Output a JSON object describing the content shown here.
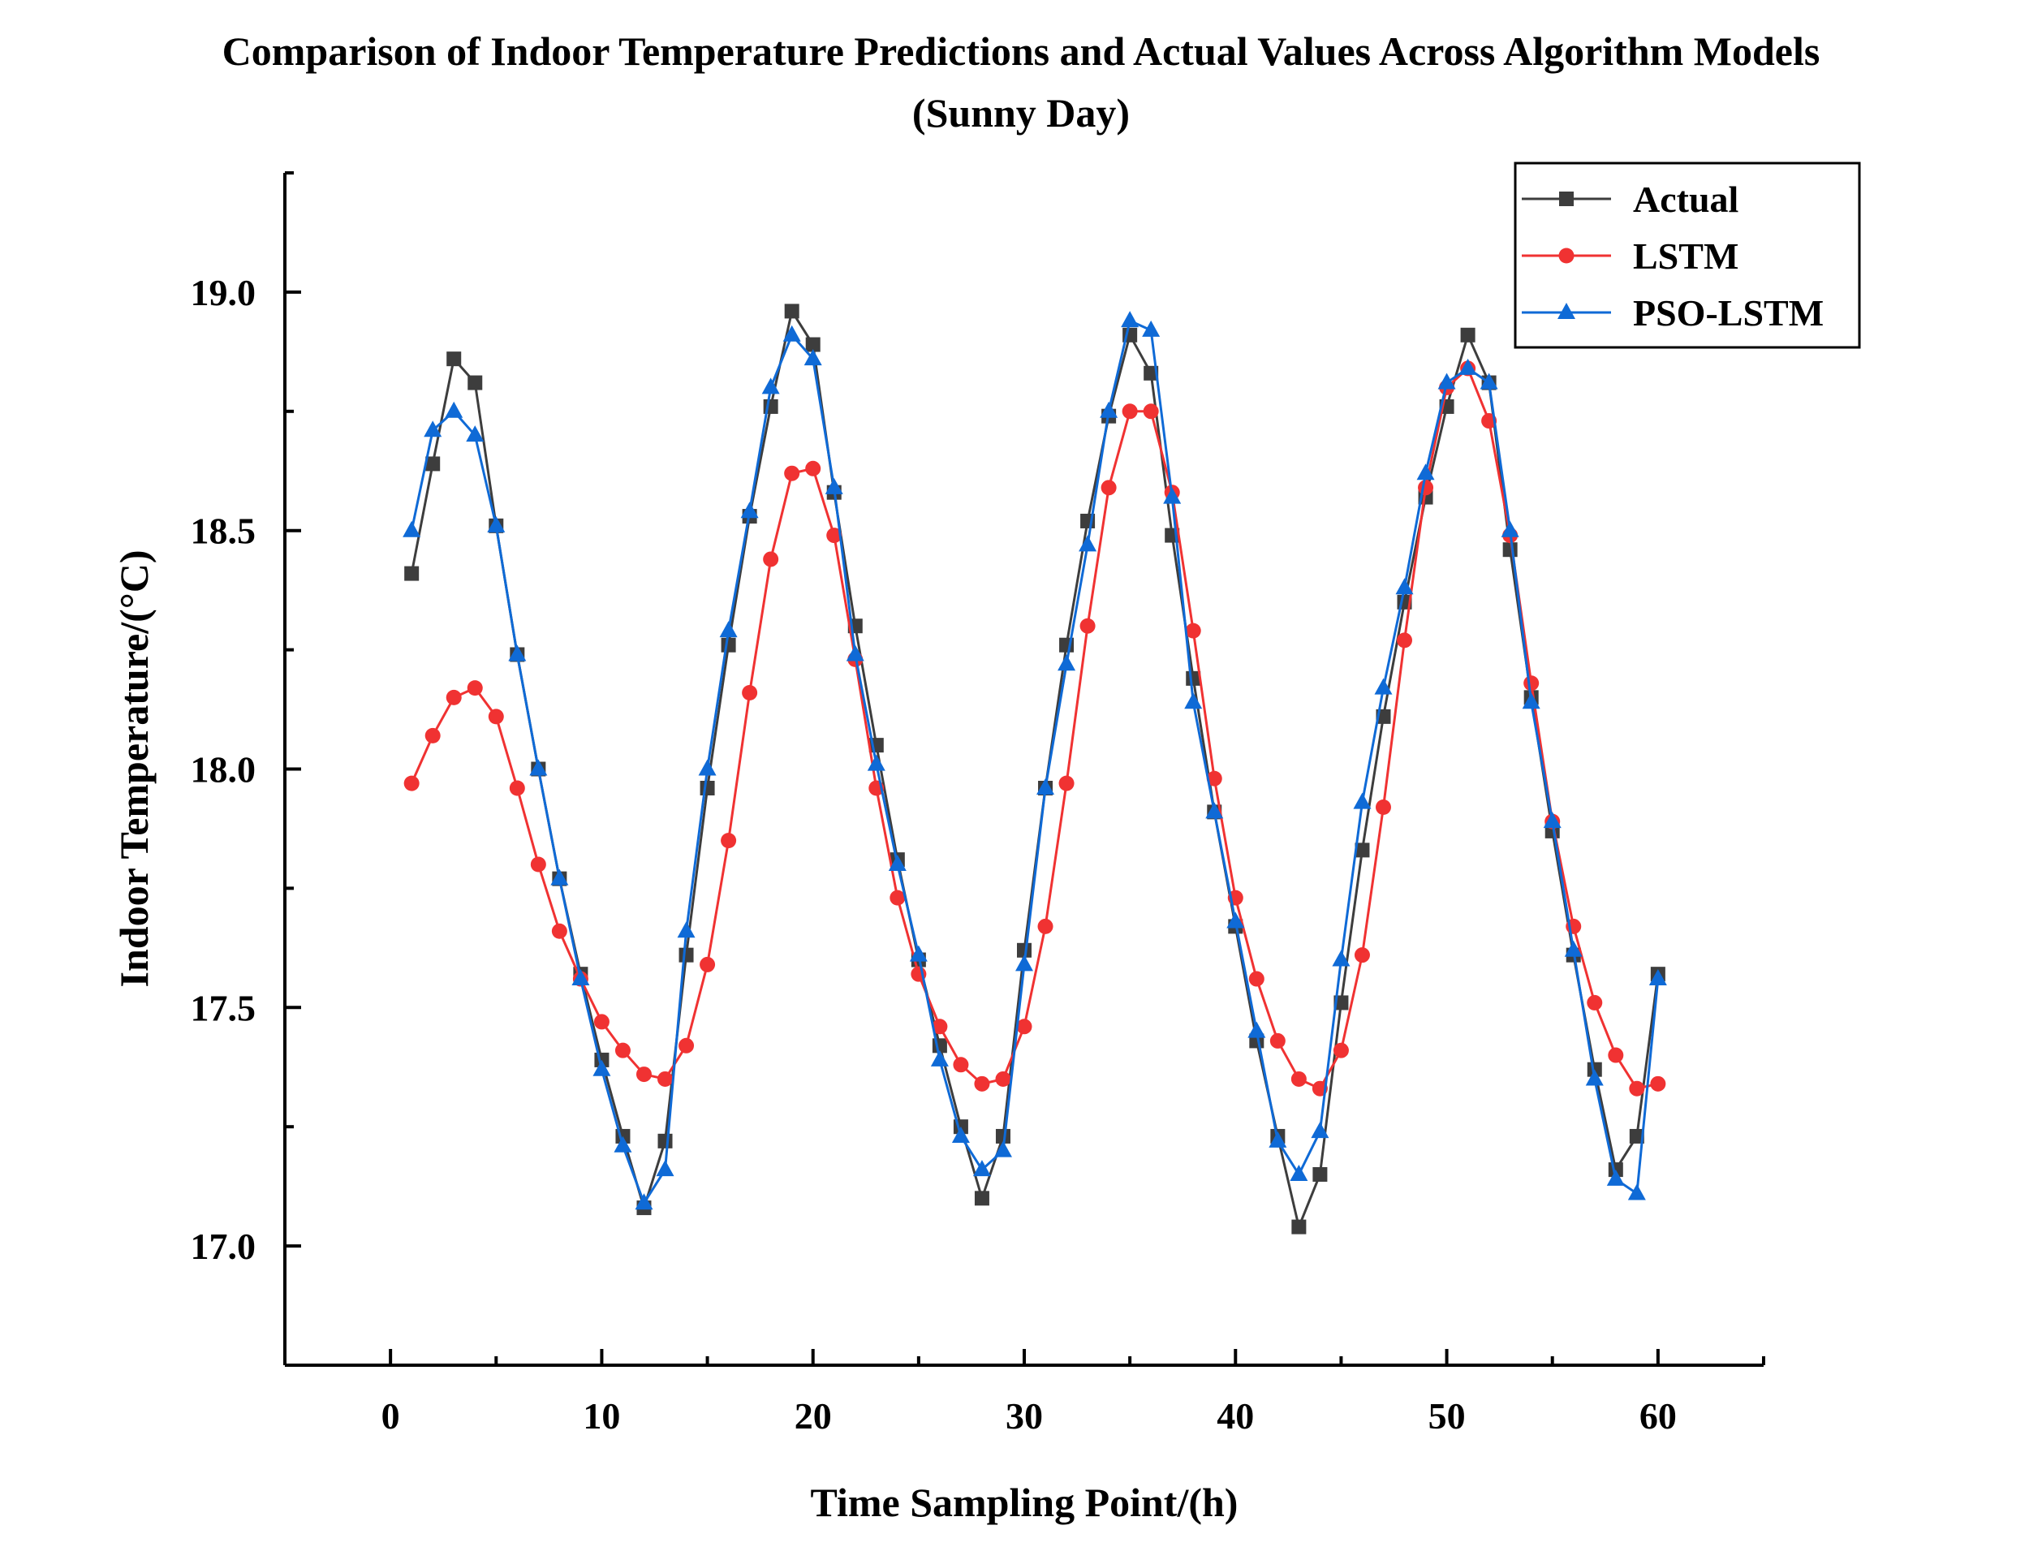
{
  "chart_data": {
    "type": "line",
    "title": "Comparison of Indoor Temperature Predictions and Actual Values Across Algorithm Models",
    "subtitle": "(Sunny Day)",
    "xlabel": "Time Sampling Point/(h)",
    "ylabel": "Indoor Temperature/(°C)",
    "xlim": [
      -5,
      65
    ],
    "ylim": [
      16.75,
      19.25
    ],
    "xticks": [
      0,
      10,
      20,
      30,
      40,
      50,
      60
    ],
    "xtick_labels": [
      "0",
      "10",
      "20",
      "30",
      "40",
      "50",
      "60"
    ],
    "yticks": [
      17.0,
      17.5,
      18.0,
      18.5,
      19.0
    ],
    "ytick_labels": [
      "17.0",
      "17.5",
      "18.0",
      "18.5",
      "19.0"
    ],
    "grid": false,
    "legend_position": "top-right",
    "x": [
      1,
      2,
      3,
      4,
      5,
      6,
      7,
      8,
      9,
      10,
      11,
      12,
      13,
      14,
      15,
      16,
      17,
      18,
      19,
      20,
      21,
      22,
      23,
      24,
      25,
      26,
      27,
      28,
      29,
      30,
      31,
      32,
      33,
      34,
      35,
      36,
      37,
      38,
      39,
      40,
      41,
      42,
      43,
      44,
      45,
      46,
      47,
      48,
      49,
      50,
      51,
      52,
      53,
      54,
      55,
      56,
      57,
      58,
      59,
      60
    ],
    "series": [
      {
        "name": "Actual",
        "color": "#3d3d3d",
        "marker": "square",
        "values": [
          18.41,
          18.64,
          18.86,
          18.81,
          18.51,
          18.24,
          18.0,
          17.77,
          17.57,
          17.39,
          17.23,
          17.08,
          17.22,
          17.61,
          17.96,
          18.26,
          18.53,
          18.76,
          18.96,
          18.89,
          18.58,
          18.3,
          18.05,
          17.81,
          17.6,
          17.42,
          17.25,
          17.1,
          17.23,
          17.62,
          17.96,
          18.26,
          18.52,
          18.74,
          18.91,
          18.83,
          18.49,
          18.19,
          17.91,
          17.67,
          17.43,
          17.23,
          17.04,
          17.15,
          17.51,
          17.83,
          18.11,
          18.35,
          18.57,
          18.76,
          18.91,
          18.81,
          18.46,
          18.15,
          17.87,
          17.61,
          17.37,
          17.16,
          17.23,
          17.57
        ]
      },
      {
        "name": "LSTM",
        "color": "#f03232",
        "marker": "circle",
        "values": [
          17.97,
          18.07,
          18.15,
          18.17,
          18.11,
          17.96,
          17.8,
          17.66,
          17.56,
          17.47,
          17.41,
          17.36,
          17.35,
          17.42,
          17.59,
          17.85,
          18.16,
          18.44,
          18.62,
          18.63,
          18.49,
          18.23,
          17.96,
          17.73,
          17.57,
          17.46,
          17.38,
          17.34,
          17.35,
          17.46,
          17.67,
          17.97,
          18.3,
          18.59,
          18.75,
          18.75,
          18.58,
          18.29,
          17.98,
          17.73,
          17.56,
          17.43,
          17.35,
          17.33,
          17.41,
          17.61,
          17.92,
          18.27,
          18.59,
          18.8,
          18.84,
          18.73,
          18.49,
          18.18,
          17.89,
          17.67,
          17.51,
          17.4,
          17.33,
          17.34
        ]
      },
      {
        "name": "PSO-LSTM",
        "color": "#0f6ad6",
        "marker": "triangle",
        "values": [
          18.5,
          18.71,
          18.75,
          18.7,
          18.51,
          18.24,
          18.0,
          17.77,
          17.56,
          17.37,
          17.21,
          17.09,
          17.16,
          17.66,
          18.0,
          18.29,
          18.54,
          18.8,
          18.91,
          18.86,
          18.59,
          18.24,
          18.01,
          17.8,
          17.61,
          17.39,
          17.23,
          17.16,
          17.2,
          17.59,
          17.96,
          18.22,
          18.47,
          18.75,
          18.94,
          18.92,
          18.57,
          18.14,
          17.91,
          17.68,
          17.45,
          17.22,
          17.15,
          17.24,
          17.6,
          17.93,
          18.17,
          18.38,
          18.62,
          18.81,
          18.84,
          18.81,
          18.5,
          18.14,
          17.89,
          17.62,
          17.35,
          17.14,
          17.11,
          17.56
        ]
      }
    ]
  }
}
